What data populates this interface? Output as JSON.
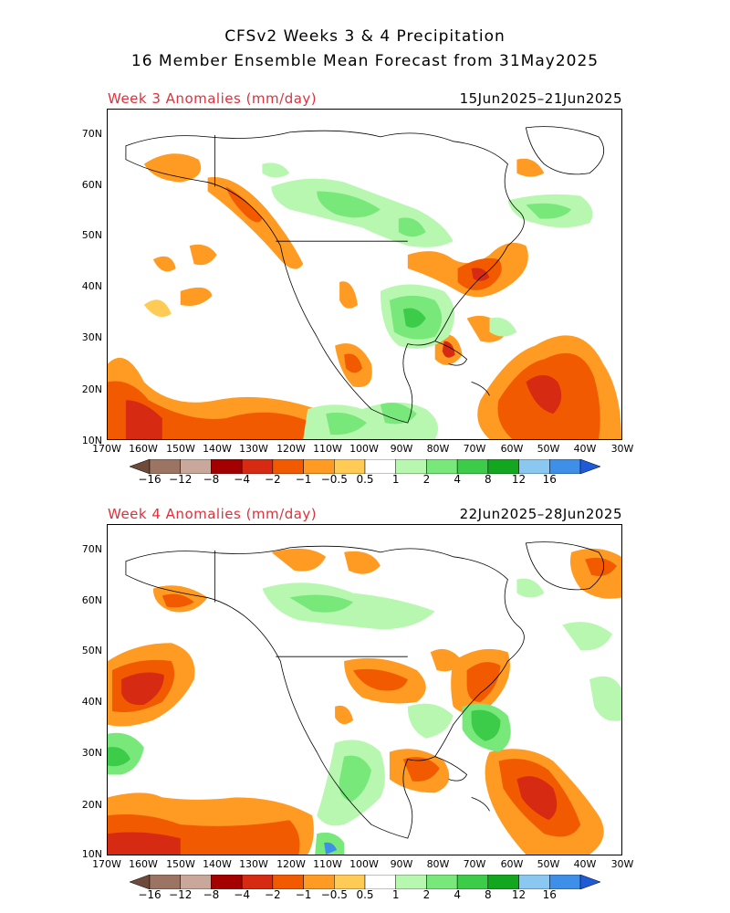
{
  "header": {
    "title_line1": "CFSv2 Weeks 3 & 4 Precipitation",
    "title_line2": "16 Member Ensemble Mean Forecast from 31May2025"
  },
  "panels": [
    {
      "label": "Week 3 Anomalies (mm/day)",
      "dates": "15Jun2025–21Jun2025"
    },
    {
      "label": "Week 4 Anomalies (mm/day)",
      "dates": "22Jun2025–28Jun2025"
    }
  ],
  "axes": {
    "lat_labels": [
      "70N",
      "60N",
      "50N",
      "40N",
      "30N",
      "20N",
      "10N"
    ],
    "lon_labels": [
      "170W",
      "160W",
      "150W",
      "140W",
      "130W",
      "120W",
      "110W",
      "100W",
      "90W",
      "80W",
      "70W",
      "60W",
      "50W",
      "40W",
      "30W"
    ]
  },
  "colorbar": {
    "labels": [
      "−16",
      "−12",
      "−8",
      "−4",
      "−2",
      "−1",
      "−0.5",
      "0.5",
      "1",
      "2",
      "4",
      "8",
      "12",
      "16"
    ],
    "colors": [
      "#6e4a3a",
      "#9c7463",
      "#c9a79a",
      "#a40000",
      "#d62a12",
      "#f25a00",
      "#ff9a22",
      "#ffcb55",
      "#ffffff",
      "#b7f7b0",
      "#78e87a",
      "#3dcc49",
      "#13a71f",
      "#8ac8f2",
      "#3e8fe8",
      "#1f5ad8"
    ]
  },
  "chart_data": {
    "type": "heatmap",
    "variable": "Precipitation anomaly",
    "units": "mm/day",
    "xlim": [
      "170W",
      "30W"
    ],
    "ylim": [
      "10N",
      "75N"
    ],
    "levels": [
      -16,
      -12,
      -8,
      -4,
      -2,
      -1,
      -0.5,
      0.5,
      1,
      2,
      4,
      8,
      12,
      16
    ]
  }
}
